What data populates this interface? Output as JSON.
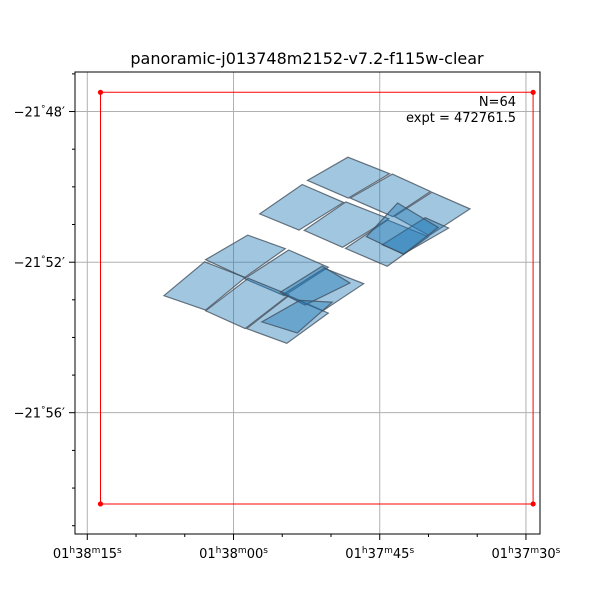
{
  "chart_data": {
    "type": "footprint",
    "title": "panoramic-j013748m2152-v7.2-f115w-clear",
    "xlabel": "",
    "ylabel": "",
    "grid": true,
    "annotation": {
      "lines": [
        "N=64",
        "expt = 472761.5"
      ],
      "placement": "top-right"
    },
    "x_axis": {
      "unit": "hours",
      "lim": [
        1.63785,
        1.6246
      ],
      "ticks": [
        {
          "value": 1.6375,
          "h": "01",
          "m": "38",
          "s": "15"
        },
        {
          "value": 1.633333,
          "h": "01",
          "m": "38",
          "s": "00"
        },
        {
          "value": 1.629167,
          "h": "01",
          "m": "37",
          "s": "45"
        },
        {
          "value": 1.625,
          "h": "01",
          "m": "37",
          "s": "30"
        }
      ],
      "minor_step": 0.00138889
    },
    "y_axis": {
      "unit": "degrees",
      "lim": [
        -21.987,
        -21.7825
      ],
      "ticks": [
        {
          "value": -21.8,
          "d": "−21",
          "m": "48"
        },
        {
          "value": -21.8667,
          "d": "−21",
          "m": "52"
        },
        {
          "value": -21.9333,
          "d": "−21",
          "m": "56"
        }
      ],
      "minor_step": 0.0166667
    },
    "boundary": {
      "color": "#ff0000",
      "vertices": [
        [
          1.637124,
          -21.9737
        ],
        [
          1.637124,
          -21.7915
        ],
        [
          1.624796,
          -21.7915
        ],
        [
          1.624796,
          -21.9737
        ]
      ]
    },
    "tile_color": "#1f77b4",
    "tile_opacity": 0.42,
    "tiles": [
      [
        [
          1.631226,
          -21.8305
        ],
        [
          1.630075,
          -21.8202
        ],
        [
          1.628887,
          -21.8275
        ],
        [
          1.630066,
          -21.8383
        ]
      ],
      [
        [
          1.632586,
          -21.8453
        ],
        [
          1.631376,
          -21.8323
        ],
        [
          1.630198,
          -21.8402
        ],
        [
          1.631466,
          -21.8525
        ]
      ],
      [
        [
          1.63001,
          -21.8383
        ],
        [
          1.628808,
          -21.8277
        ],
        [
          1.62772,
          -21.8354
        ],
        [
          1.628798,
          -21.8465
        ]
      ],
      [
        [
          1.63132,
          -21.8526
        ],
        [
          1.630132,
          -21.84
        ],
        [
          1.628905,
          -21.8475
        ],
        [
          1.630226,
          -21.8601
        ]
      ],
      [
        [
          1.628751,
          -21.8464
        ],
        [
          1.627683,
          -21.8357
        ],
        [
          1.626595,
          -21.8431
        ],
        [
          1.627757,
          -21.8549
        ]
      ],
      [
        [
          1.630141,
          -21.8606
        ],
        [
          1.628944,
          -21.848
        ],
        [
          1.627776,
          -21.8554
        ],
        [
          1.628954,
          -21.8685
        ]
      ],
      [
        [
          1.629094,
          -21.859
        ],
        [
          1.627867,
          -21.847
        ],
        [
          1.627204,
          -21.8516
        ],
        [
          1.628489,
          -21.863
        ]
      ],
      [
        [
          1.629548,
          -21.8554
        ],
        [
          1.628659,
          -21.8405
        ],
        [
          1.627502,
          -21.8513
        ],
        [
          1.62849,
          -21.8632
        ]
      ],
      [
        [
          1.634129,
          -21.8656
        ],
        [
          1.632929,
          -21.8547
        ],
        [
          1.631859,
          -21.8607
        ],
        [
          1.633021,
          -21.8735
        ]
      ],
      [
        [
          1.635318,
          -21.8815
        ],
        [
          1.634158,
          -21.8665
        ],
        [
          1.633,
          -21.8735
        ],
        [
          1.634129,
          -21.8879
        ]
      ],
      [
        [
          1.633021,
          -21.874
        ],
        [
          1.631764,
          -21.8613
        ],
        [
          1.630633,
          -21.8689
        ],
        [
          1.631889,
          -21.8815
        ]
      ],
      [
        [
          1.634129,
          -21.8882
        ],
        [
          1.632913,
          -21.8738
        ],
        [
          1.631756,
          -21.8811
        ],
        [
          1.633,
          -21.8961
        ]
      ],
      [
        [
          1.631911,
          -21.8808
        ],
        [
          1.63075,
          -21.8694
        ],
        [
          1.629623,
          -21.8762
        ],
        [
          1.630794,
          -21.8883
        ]
      ],
      [
        [
          1.632961,
          -21.8961
        ],
        [
          1.631756,
          -21.8815
        ],
        [
          1.630633,
          -21.8892
        ],
        [
          1.631816,
          -21.9026
        ]
      ],
      [
        [
          1.632001,
          -21.88
        ],
        [
          1.630804,
          -21.8684
        ],
        [
          1.630017,
          -21.8759
        ],
        [
          1.631295,
          -21.8857
        ]
      ],
      [
        [
          1.632526,
          -21.8931
        ],
        [
          1.631444,
          -21.8836
        ],
        [
          1.630521,
          -21.8844
        ],
        [
          1.631519,
          -21.898
        ]
      ]
    ]
  }
}
